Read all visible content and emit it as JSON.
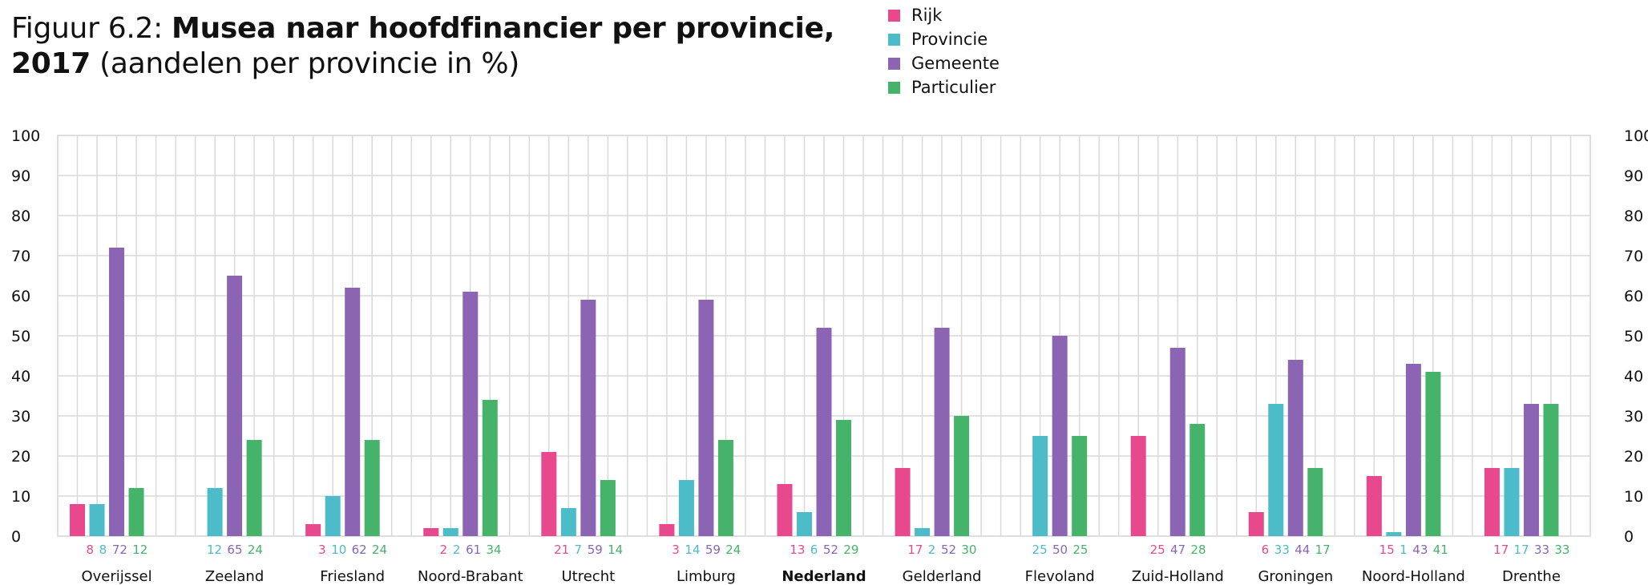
{
  "title": {
    "prefix": "Figuur 6.2: ",
    "bold": "Musea naar hoofdfinancier per provincie, 2017",
    "rest": " (aandelen per provincie in %)"
  },
  "chart_data": {
    "type": "bar",
    "categories": [
      "Overijssel",
      "Zeeland",
      "Friesland",
      "Noord-Brabant",
      "Utrecht",
      "Limburg",
      "Nederland",
      "Gelderland",
      "Flevoland",
      "Zuid-Holland",
      "Groningen",
      "Noord-Holland",
      "Drenthe"
    ],
    "highlight_category": "Nederland",
    "series": [
      {
        "name": "Rijk",
        "color": "#e8488c",
        "values": [
          8,
          null,
          3,
          2,
          21,
          3,
          13,
          17,
          null,
          25,
          6,
          15,
          17
        ]
      },
      {
        "name": "Provincie",
        "color": "#4bbcc8",
        "values": [
          8,
          12,
          10,
          2,
          7,
          14,
          6,
          2,
          25,
          null,
          33,
          1,
          17
        ]
      },
      {
        "name": "Gemeente",
        "color": "#8c64b4",
        "values": [
          72,
          65,
          62,
          61,
          59,
          59,
          52,
          52,
          50,
          47,
          44,
          43,
          33
        ]
      },
      {
        "name": "Particulier",
        "color": "#45b369",
        "values": [
          12,
          24,
          24,
          34,
          14,
          24,
          29,
          30,
          25,
          28,
          17,
          41,
          33
        ]
      }
    ],
    "ylim": [
      0,
      100
    ],
    "yticks": [
      0,
      10,
      20,
      30,
      40,
      50,
      60,
      70,
      80,
      90,
      100
    ],
    "grid": true,
    "legend_position": "top-center",
    "data_labels": true
  }
}
